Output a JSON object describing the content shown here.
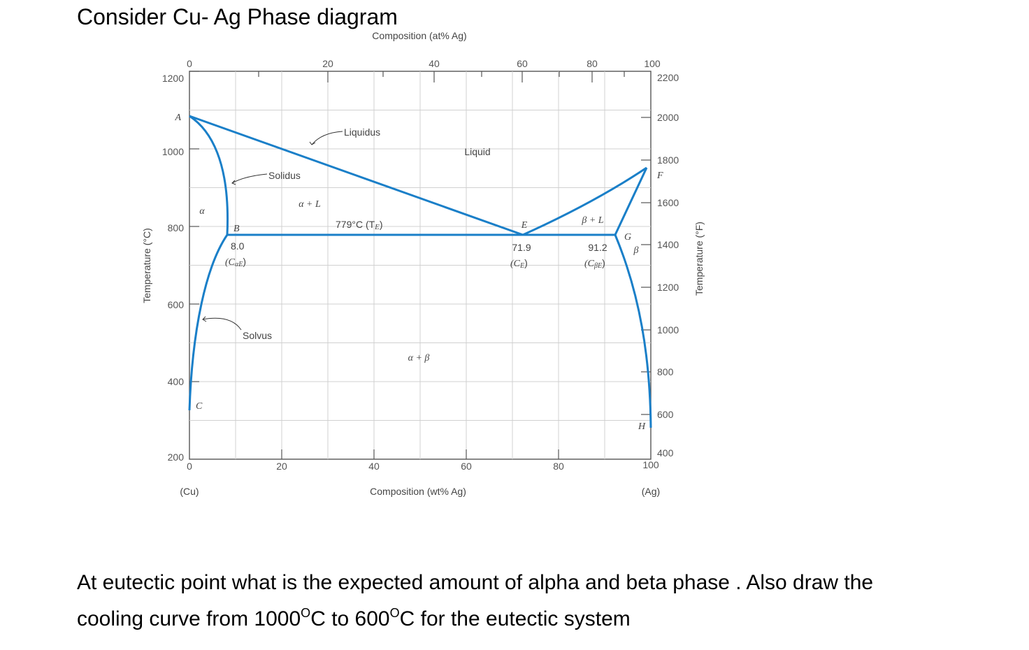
{
  "title": "Consider Cu- Ag Phase diagram",
  "question": {
    "line1": "At eutectic point what is the expected amount of alpha and beta phase . Also draw the",
    "line2_a": "cooling curve from 1000",
    "sup_1": "O",
    "line2_b": "C to 600",
    "sup_2": "O",
    "line2_c": "C for the eutectic system"
  },
  "diagram": {
    "top_axis_title": "Composition (at% Ag)",
    "bottom_axis_title": "Composition (wt% Ag)",
    "left_axis_title": "Temperature (°C)",
    "right_axis_title": "Temperature (°F)",
    "top_ticks": [
      "0",
      "20",
      "40",
      "60",
      "80",
      "100"
    ],
    "bottom_ticks": [
      "0",
      "20",
      "40",
      "60",
      "80",
      "100"
    ],
    "left_ticks": [
      "1200",
      "1000",
      "800",
      "600",
      "400",
      "200"
    ],
    "right_ticks": [
      "2200",
      "2000",
      "1800",
      "1600",
      "1400",
      "1200",
      "1000",
      "800",
      "600",
      "400"
    ],
    "bottom_left_label": "(Cu)",
    "bottom_right_label": "(Ag)",
    "phase_labels": {
      "liquid": "Liquid",
      "alpha": "α",
      "beta": "β",
      "alpha_plus_liquid": "α + L",
      "beta_plus_liquid": "β + L",
      "alpha_plus_beta": "α + β"
    },
    "line_labels": {
      "liquidus": "Liquidus",
      "solidus": "Solidus",
      "solvus": "Solvus",
      "eutectic_temp": "779°C (T",
      "eutectic_temp_sub": "E",
      "eutectic_temp_close": ")"
    },
    "points": {
      "A": "A",
      "B": "B",
      "C": "C",
      "E": "E",
      "F": "F",
      "G": "G",
      "H": "H"
    },
    "composition_values": {
      "alpha_value": "8.0",
      "alpha_label": "(C",
      "alpha_sub": "αE",
      "eutectic_value": "71.9",
      "eutectic_label": "(C",
      "eutectic_sub": "E",
      "beta_value": "91.2",
      "beta_label": "(C",
      "beta_sub": "βE",
      "close_paren": ")"
    }
  }
}
